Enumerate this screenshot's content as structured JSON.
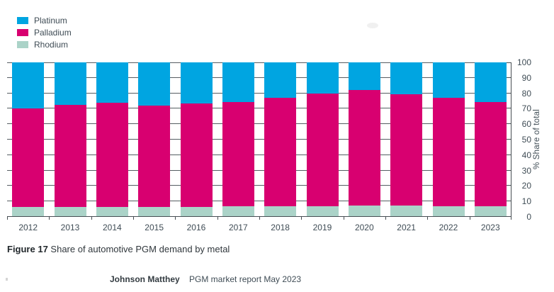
{
  "legend": {
    "items": [
      {
        "label": "Platinum",
        "color": "#00a5e1"
      },
      {
        "label": "Palladium",
        "color": "#d80070"
      },
      {
        "label": "Rhodium",
        "color": "#abd3c8"
      }
    ]
  },
  "chart_data": {
    "type": "bar",
    "stacked": true,
    "percent_total": true,
    "categories": [
      "2012",
      "2013",
      "2014",
      "2015",
      "2016",
      "2017",
      "2018",
      "2019",
      "2020",
      "2021",
      "2022",
      "2023"
    ],
    "series": [
      {
        "name": "Rhodium",
        "color": "#abd3c8",
        "values": [
          6.5,
          6.5,
          6.5,
          6.5,
          6.5,
          7,
          7,
          7,
          7.5,
          7.5,
          7,
          7
        ]
      },
      {
        "name": "Palladium",
        "color": "#d80070",
        "values": [
          63.5,
          66,
          67.5,
          65.5,
          67,
          67.5,
          70,
          73,
          74.5,
          72,
          70,
          67.5
        ]
      },
      {
        "name": "Platinum",
        "color": "#00a5e1",
        "values": [
          30,
          27.5,
          26,
          28,
          26.5,
          25.5,
          23,
          20,
          18,
          20.5,
          23,
          25.5
        ]
      }
    ],
    "xlabel": "",
    "ylabel": "% Share of total",
    "ylim": [
      0,
      100
    ],
    "yticks": [
      0,
      10,
      20,
      30,
      40,
      50,
      60,
      70,
      80,
      90,
      100
    ],
    "grid": "horizontal, visible in gaps between bars",
    "legend_position": "top-left",
    "y_axis_side": "right",
    "axis_color": "#474e53"
  },
  "caption": {
    "figure_label": "Figure 17",
    "text": "Share of automotive PGM demand by metal"
  },
  "footer": {
    "source_bold": "Johnson Matthey",
    "source_text": "PGM market report May 2023"
  }
}
